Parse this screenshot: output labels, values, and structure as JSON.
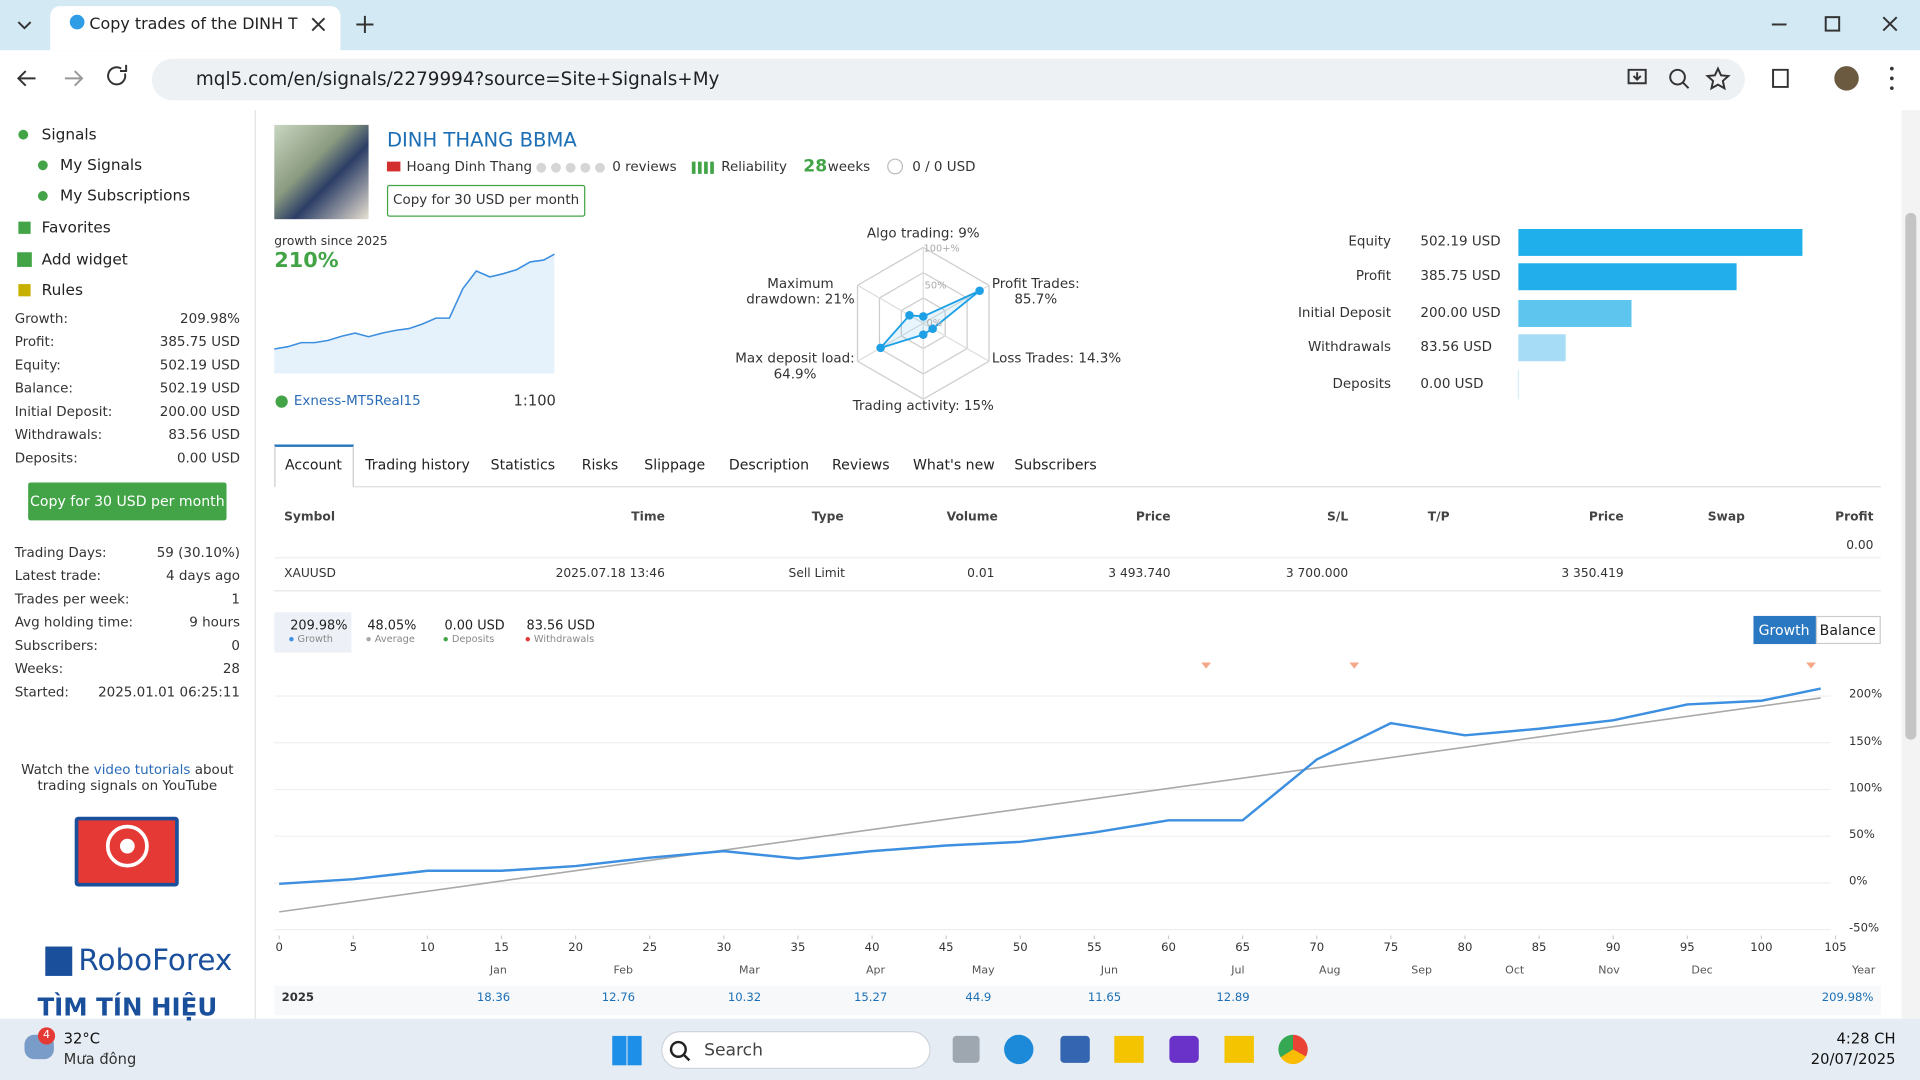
{
  "browser": {
    "tab_title": "Copy trades of the DINH THAN",
    "url": "mql5.com/en/signals/2279994?source=Site+Signals+My"
  },
  "sidebar": {
    "nav": [
      "Signals",
      "My Signals",
      "My Subscriptions",
      "Favorites",
      "Add widget",
      "Rules"
    ],
    "stats": [
      {
        "label": "Growth:",
        "value": "209.98%"
      },
      {
        "label": "Profit:",
        "value": "385.75 USD"
      },
      {
        "label": "Equity:",
        "value": "502.19 USD"
      },
      {
        "label": "Balance:",
        "value": "502.19 USD"
      },
      {
        "label": "Initial Deposit:",
        "value": "200.00 USD"
      },
      {
        "label": "Withdrawals:",
        "value": "83.56 USD"
      },
      {
        "label": "Deposits:",
        "value": "0.00 USD"
      }
    ],
    "button": "Copy for 30 USD per month",
    "stats2": [
      {
        "label": "Trading Days:",
        "value": "59 (30.10%)"
      },
      {
        "label": "Latest trade:",
        "value": "4 days ago"
      },
      {
        "label": "Trades per week:",
        "value": "1"
      },
      {
        "label": "Avg holding time:",
        "value": "9 hours"
      },
      {
        "label": "Subscribers:",
        "value": "0"
      },
      {
        "label": "Weeks:",
        "value": "28"
      },
      {
        "label": "Started:",
        "value": "2025.01.01 06:25:11"
      }
    ],
    "watch": [
      "Watch the ",
      "video tutorials",
      " about",
      "trading signals on YouTube"
    ],
    "sponsor": "RoboForex",
    "sponsor_tag": "TÌM TÍN HIỆU"
  },
  "profile": {
    "name": "DINH THANG BBMA",
    "author": "Hoang Dinh Thang",
    "reviews": "0 reviews",
    "reliability": "Reliability",
    "weeks": "28",
    "weeks_label": "weeks",
    "subscribers": "0 / 0 USD",
    "copy_button": "Copy for 30 USD per month",
    "growth_label": "growth since 2025",
    "growth": "210%",
    "broker": "Exness-MT5Real15",
    "leverage": "1:100"
  },
  "radar": {
    "type": "radar",
    "labels": [
      [
        "Algo trading: 9%"
      ],
      [
        "Profit Trades:",
        "85.7%"
      ],
      [
        "Loss Trades: 14.3%"
      ],
      [
        "Trading activity: 15%"
      ],
      [
        "Max deposit load:",
        "64.9%"
      ],
      [
        "Maximum",
        "drawdown: 21%"
      ]
    ],
    "values": [
      9,
      85.7,
      14.3,
      15,
      64.9,
      21
    ],
    "rmax": 100,
    "ring_labels": [
      "100+%",
      "50%",
      "0%"
    ]
  },
  "balance_bars": {
    "type": "bar",
    "categories": [
      "Equity",
      "Profit",
      "Initial Deposit",
      "Withdrawals",
      "Deposits"
    ],
    "values": [
      502.19,
      385.75,
      200,
      83.56,
      0
    ],
    "value_labels": [
      "502.19 USD",
      "385.75 USD",
      "200.00 USD",
      "83.56 USD",
      "0.00 USD"
    ],
    "colors": [
      "#1fb0ec",
      "#22aeea",
      "#5ec5ef",
      "#a6dcf5",
      "#d6eefa"
    ]
  },
  "tabs": [
    "Account",
    "Trading history",
    "Statistics",
    "Risks",
    "Slippage",
    "Description",
    "Reviews",
    "What's new",
    "Subscribers"
  ],
  "table": {
    "headers": [
      "Symbol",
      "Time",
      "Type",
      "Volume",
      "Price",
      "S/L",
      "T/P",
      "Price",
      "Swap",
      "Profit"
    ],
    "row": [
      "XAUUSD",
      "2025.07.18 13:46",
      "Sell Limit",
      "0.01",
      "3 493.740",
      "3 700.000",
      "3 350.419"
    ],
    "profit": "0.00"
  },
  "growth_chart": {
    "type": "line",
    "xlim": [
      0,
      105
    ],
    "xticks": [
      0,
      5,
      10,
      15,
      20,
      25,
      30,
      35,
      40,
      45,
      50,
      55,
      60,
      65,
      70,
      75,
      80,
      85,
      90,
      95,
      100,
      105
    ],
    "ylim": [
      -55,
      215
    ],
    "yticks": [
      {
        "value": -50,
        "label": "-50%"
      },
      {
        "value": 0,
        "label": "0%"
      },
      {
        "value": 50,
        "label": "50%"
      },
      {
        "value": 100,
        "label": "100%"
      },
      {
        "value": 150,
        "label": "150%"
      },
      {
        "value": 200,
        "label": "200%"
      }
    ],
    "series": [
      {
        "name": "Growth",
        "summary": "209.98%",
        "color": "#3d8fe0",
        "x": [
          0,
          5,
          10,
          15,
          20,
          25,
          30,
          35,
          40,
          45,
          50,
          55,
          60,
          65,
          70,
          75,
          80,
          85,
          90,
          95,
          100,
          104
        ],
        "values": [
          -1,
          4,
          13,
          13,
          18,
          27,
          34,
          26,
          34,
          40,
          44,
          54,
          67,
          67,
          132,
          171,
          158,
          165,
          174,
          191,
          195,
          208
        ]
      },
      {
        "name": "Average",
        "summary": "48.05%",
        "color": "#a9a9a9",
        "x": [
          0,
          104
        ],
        "values": [
          -31,
          198
        ]
      }
    ],
    "extra_legend": [
      {
        "name": "Deposits",
        "summary": "0.00 USD"
      },
      {
        "name": "Withdrawals",
        "summary": "83.56 USD"
      }
    ],
    "buttons": [
      "Growth",
      "Balance"
    ],
    "months": [
      "Jan",
      "Feb",
      "Mar",
      "Apr",
      "May",
      "Jun",
      "Jul",
      "Aug",
      "Sep",
      "Oct",
      "Nov",
      "Dec"
    ],
    "total_label": "Year",
    "monthly": {
      "year": "2025",
      "values": [
        "18.36",
        "12.76",
        "10.32",
        "15.27",
        "44.9",
        "11.65",
        "12.89"
      ],
      "total": "209.98%"
    }
  },
  "taskbar": {
    "badge": "4",
    "temp": "32°C",
    "weather": "Mưa đông",
    "search": "Search",
    "time": "4:28 CH",
    "date": "20/07/2025"
  }
}
